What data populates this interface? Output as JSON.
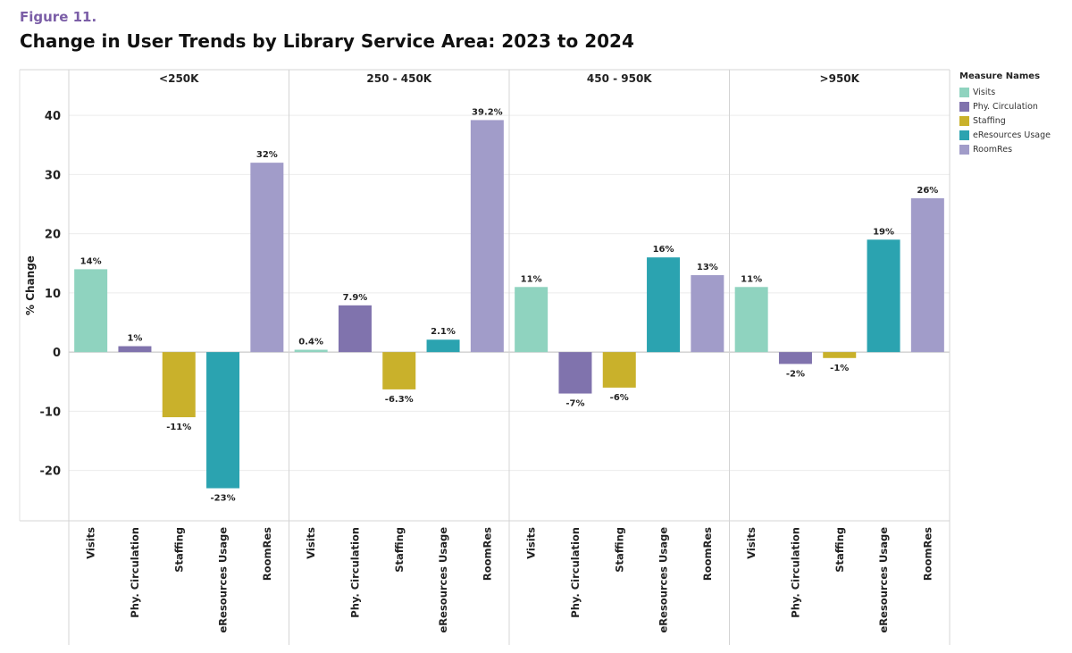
{
  "figure_label": "Figure 11.",
  "title": "Change in User Trends by Library Service Area: 2023 to 2024",
  "chart_data": {
    "type": "bar",
    "title": "Change in User Trends by Library Service Area: 2023 to 2024",
    "ylabel": "% Change",
    "xlabel": "",
    "ylim": [
      -28.5,
      45
    ],
    "yticks": [
      -20,
      -10,
      0,
      10,
      20,
      30,
      40
    ],
    "grid": true,
    "legend_title": "Measure Names",
    "legend_position": "top-right",
    "measures": [
      "Visits",
      "Phy. Circulation",
      "Staffing",
      "eResources Usage",
      "RoomRes"
    ],
    "colors": {
      "Visits": "#8fd3bf",
      "Phy. Circulation": "#8073ad",
      "Staffing": "#c9b12b",
      "eResources Usage": "#2ba3b0",
      "RoomRes": "#a19cc9"
    },
    "panels": [
      {
        "name": "<250K",
        "values": [
          14,
          1,
          -11,
          -23,
          32
        ],
        "labels": [
          "14%",
          "1%",
          "-11%",
          "-23%",
          "32%"
        ]
      },
      {
        "name": "250 - 450K",
        "values": [
          0.4,
          7.9,
          -6.3,
          2.1,
          39.2
        ],
        "labels": [
          "0.4%",
          "7.9%",
          "-6.3%",
          "2.1%",
          "39.2%"
        ]
      },
      {
        "name": "450 - 950K",
        "values": [
          11,
          -7,
          -6,
          16,
          13
        ],
        "labels": [
          "11%",
          "-7%",
          "-6%",
          "16%",
          "13%"
        ]
      },
      {
        "name": ">950K",
        "values": [
          11,
          -2,
          -1,
          19,
          26
        ],
        "labels": [
          "11%",
          "-2%",
          "-1%",
          "19%",
          "26%"
        ]
      }
    ]
  }
}
